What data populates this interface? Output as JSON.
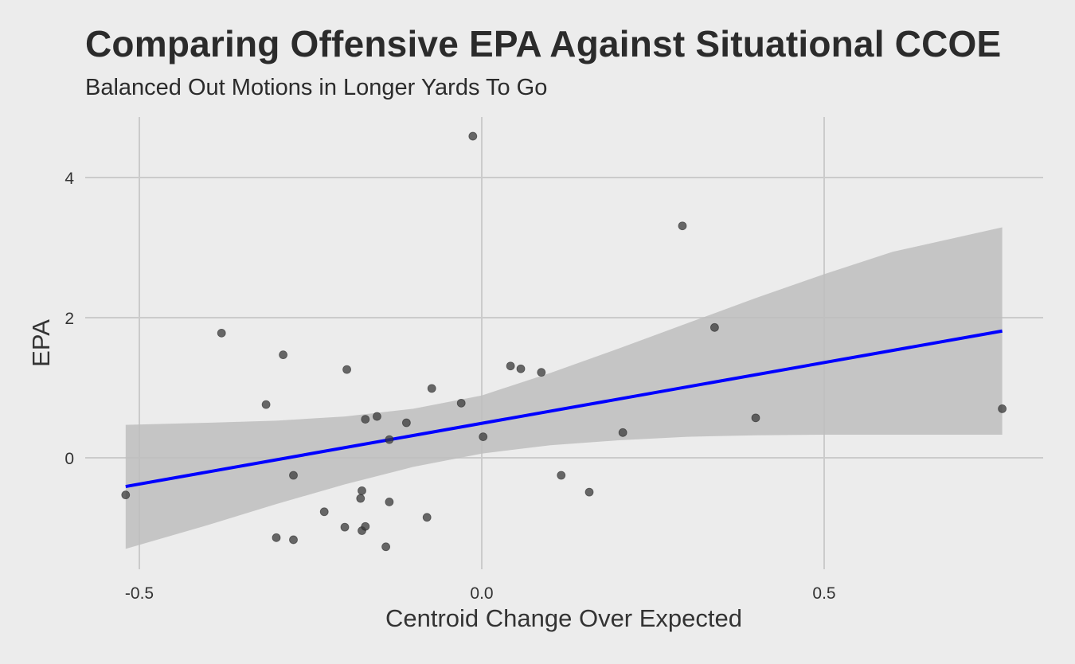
{
  "chart_data": {
    "type": "scatter",
    "title": "Comparing Offensive EPA Against Situational CCOE",
    "subtitle": "Balanced Out Motions in Longer Yards To Go",
    "xlabel": "Centroid Change Over Expected",
    "ylabel": "EPA",
    "xlim": [
      -0.535,
      0.82
    ],
    "ylim": [
      -1.6,
      4.87
    ],
    "xticks": [
      -0.5,
      0.0,
      0.5
    ],
    "xtick_labels": [
      "-0.5",
      "0.0",
      "0.5"
    ],
    "yticks": [
      0,
      2,
      4
    ],
    "ytick_labels": [
      "0",
      "2",
      "4"
    ],
    "grid": true,
    "points": [
      {
        "x": -0.52,
        "y": -0.53
      },
      {
        "x": -0.38,
        "y": 1.78
      },
      {
        "x": -0.315,
        "y": 0.76
      },
      {
        "x": -0.3,
        "y": -1.14
      },
      {
        "x": -0.29,
        "y": 1.47
      },
      {
        "x": -0.275,
        "y": -0.25
      },
      {
        "x": -0.275,
        "y": -1.17
      },
      {
        "x": -0.23,
        "y": -0.77
      },
      {
        "x": -0.2,
        "y": -0.99
      },
      {
        "x": -0.197,
        "y": 1.26
      },
      {
        "x": -0.177,
        "y": -0.58
      },
      {
        "x": -0.175,
        "y": -0.47
      },
      {
        "x": -0.175,
        "y": -1.04
      },
      {
        "x": -0.17,
        "y": -0.98
      },
      {
        "x": -0.17,
        "y": 0.55
      },
      {
        "x": -0.153,
        "y": 0.59
      },
      {
        "x": -0.14,
        "y": -1.27
      },
      {
        "x": -0.135,
        "y": -0.63
      },
      {
        "x": -0.135,
        "y": 0.26
      },
      {
        "x": -0.11,
        "y": 0.5
      },
      {
        "x": -0.08,
        "y": -0.85
      },
      {
        "x": -0.073,
        "y": 0.99
      },
      {
        "x": -0.03,
        "y": 0.78
      },
      {
        "x": -0.013,
        "y": 4.59
      },
      {
        "x": 0.002,
        "y": 0.3
      },
      {
        "x": 0.042,
        "y": 1.31
      },
      {
        "x": 0.057,
        "y": 1.27
      },
      {
        "x": 0.087,
        "y": 1.22
      },
      {
        "x": 0.116,
        "y": -0.25
      },
      {
        "x": 0.157,
        "y": -0.49
      },
      {
        "x": 0.206,
        "y": 0.36
      },
      {
        "x": 0.293,
        "y": 3.31
      },
      {
        "x": 0.34,
        "y": 1.86
      },
      {
        "x": 0.4,
        "y": 0.57
      },
      {
        "x": 0.76,
        "y": 0.7
      }
    ],
    "trend_line": {
      "color": "#0000ff",
      "x": [
        -0.52,
        0.76
      ],
      "y": [
        -0.41,
        1.81
      ]
    },
    "confidence_band": {
      "color": "#bebebe",
      "x": [
        -0.52,
        -0.4,
        -0.3,
        -0.2,
        -0.1,
        0.0,
        0.1,
        0.2,
        0.3,
        0.4,
        0.5,
        0.6,
        0.76
      ],
      "upper": [
        0.47,
        0.5,
        0.53,
        0.59,
        0.7,
        0.89,
        1.21,
        1.56,
        1.92,
        2.28,
        2.62,
        2.94,
        3.29
      ],
      "lower": [
        -1.3,
        -0.96,
        -0.66,
        -0.38,
        -0.13,
        0.06,
        0.18,
        0.25,
        0.3,
        0.32,
        0.33,
        0.33,
        0.33
      ]
    },
    "point_color": "#3a3a3a"
  }
}
